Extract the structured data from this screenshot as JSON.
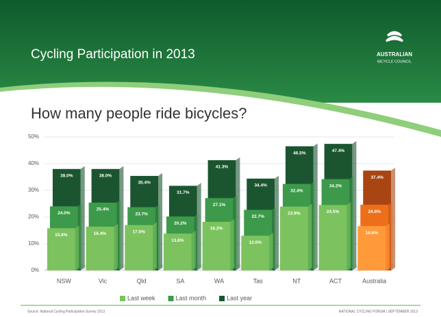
{
  "header": {
    "title": "Cycling Participation in 2013",
    "logo_line1": "AUSTRALIAN",
    "logo_line2": "BICYCLE COUNCIL"
  },
  "chart_data": {
    "type": "bar",
    "title": "How many people ride bicycles?",
    "categories": [
      "NSW",
      "Vic",
      "Qld",
      "SA",
      "WA",
      "Tas",
      "NT",
      "ACT",
      "Australia"
    ],
    "highlight": "Australia",
    "series": [
      {
        "name": "Last week",
        "color": "#7cc35f",
        "highlight_color": "#ff9a3a",
        "values": [
          15.8,
          16.4,
          17.0,
          13.8,
          18.2,
          13.0,
          23.9,
          24.5,
          16.6
        ],
        "value_labels": [
          "15.8%",
          "16.4%",
          "17.0%",
          "13.8%",
          "18.2%",
          "13.0%",
          "23.9%",
          "24.5%",
          "16.6%"
        ]
      },
      {
        "name": "Last month",
        "color": "#3d9a4a",
        "highlight_color": "#ee6f1a",
        "values": [
          24.0,
          25.4,
          23.7,
          20.2,
          27.1,
          22.7,
          32.4,
          34.2,
          24.6
        ],
        "value_labels": [
          "24.0%",
          "25.4%",
          "23.7%",
          "20.2%",
          "27.1%",
          "22.7%",
          "32.4%",
          "34.2%",
          "24.6%"
        ]
      },
      {
        "name": "Last year",
        "color": "#1b5530",
        "highlight_color": "#a84512",
        "values": [
          38.0,
          38.0,
          35.4,
          31.7,
          41.3,
          34.4,
          46.5,
          47.4,
          37.4
        ],
        "value_labels": [
          "38.0%",
          "38.0%",
          "35.4%",
          "31.7%",
          "41.3%",
          "34.4%",
          "46.5%",
          "47.4%",
          "37.4%"
        ]
      }
    ],
    "ylim": [
      0,
      50
    ],
    "yticks": [
      {
        "value": 0,
        "label": "0%"
      },
      {
        "value": 10,
        "label": "10%"
      },
      {
        "value": 20,
        "label": "20%"
      },
      {
        "value": 30,
        "label": "30%"
      },
      {
        "value": 40,
        "label": "40%"
      },
      {
        "value": 50,
        "label": "50%"
      }
    ],
    "grid": true,
    "legend": "bottom"
  },
  "footer": {
    "source": "Source: National Cycling Participation Survey 2013",
    "event": "NATIONAL CYCLING FORUM | SEPTEMBER 2013"
  }
}
